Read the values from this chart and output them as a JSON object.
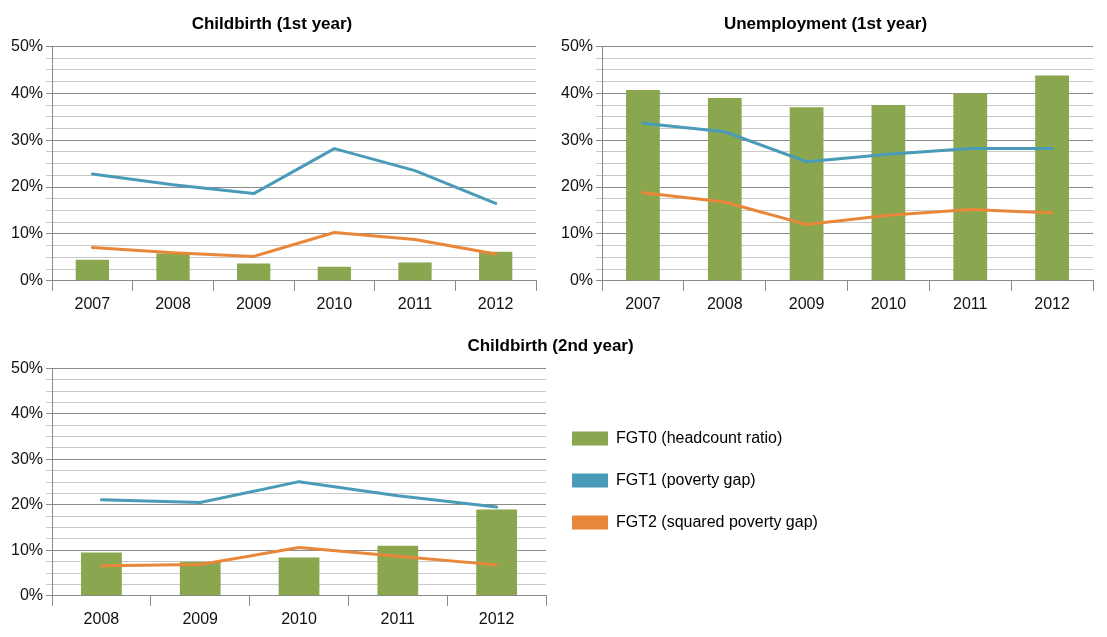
{
  "chart_data": [
    {
      "type": "bar",
      "title": "Childbirth (1st year)",
      "categories": [
        "2007",
        "2008",
        "2009",
        "2010",
        "2011",
        "2012"
      ],
      "marker": "none",
      "grid": "y",
      "series": [
        {
          "color": "#8aa64e",
          "values": [
            4.5,
            5.8,
            3.7,
            3.0,
            3.9,
            6.2
          ]
        },
        {
          "type": "line",
          "color": "#4a9bb8",
          "values": [
            22.8,
            20.5,
            18.6,
            28.2,
            23.5,
            16.5
          ]
        },
        {
          "type": "line",
          "color": "#e8873a",
          "values": [
            7.1,
            6.0,
            5.2,
            10.3,
            8.8,
            5.7
          ]
        }
      ],
      "ylim": [
        0,
        50
      ],
      "yticks": [
        {
          "value": 0,
          "label": "0%"
        },
        {
          "value": 2.5,
          "label": null
        },
        {
          "value": 5,
          "label": null
        },
        {
          "value": 7.5,
          "label": null
        },
        {
          "value": 10,
          "label": "10%"
        },
        {
          "value": 12.5,
          "label": null
        },
        {
          "value": 15,
          "label": null
        },
        {
          "value": 17.5,
          "label": null
        },
        {
          "value": 20,
          "label": "20%"
        },
        {
          "value": 22.5,
          "label": null
        },
        {
          "value": 25,
          "label": null
        },
        {
          "value": 27.5,
          "label": null
        },
        {
          "value": 30,
          "label": "30%"
        },
        {
          "value": 32.5,
          "label": null
        },
        {
          "value": 35,
          "label": null
        },
        {
          "value": 37.5,
          "label": null
        },
        {
          "value": 40,
          "label": "40%"
        },
        {
          "value": 42.5,
          "label": null
        },
        {
          "value": 45,
          "label": null
        },
        {
          "value": 47.5,
          "label": null
        },
        {
          "value": 50,
          "label": "50%"
        }
      ]
    },
    {
      "type": "bar",
      "title": "Unemployment (1st year)",
      "categories": [
        "2007",
        "2008",
        "2009",
        "2010",
        "2011",
        "2012"
      ],
      "marker": "none",
      "grid": "y",
      "series": [
        {
          "color": "#8aa64e",
          "values": [
            40.7,
            39.0,
            37.0,
            37.5,
            40.0,
            43.8
          ]
        },
        {
          "type": "line",
          "color": "#4a9bb8",
          "values": [
            33.6,
            31.8,
            25.4,
            27.0,
            28.2,
            28.2
          ]
        },
        {
          "type": "line",
          "color": "#e8873a",
          "values": [
            18.8,
            16.8,
            12.0,
            14.0,
            15.2,
            14.5
          ]
        }
      ],
      "ylim": [
        0,
        50
      ],
      "yticks": [
        {
          "value": 0,
          "label": "0%"
        },
        {
          "value": 2.5,
          "label": null
        },
        {
          "value": 5,
          "label": null
        },
        {
          "value": 7.5,
          "label": null
        },
        {
          "value": 10,
          "label": "10%"
        },
        {
          "value": 12.5,
          "label": null
        },
        {
          "value": 15,
          "label": null
        },
        {
          "value": 17.5,
          "label": null
        },
        {
          "value": 20,
          "label": "20%"
        },
        {
          "value": 22.5,
          "label": null
        },
        {
          "value": 25,
          "label": null
        },
        {
          "value": 27.5,
          "label": null
        },
        {
          "value": 30,
          "label": "30%"
        },
        {
          "value": 32.5,
          "label": null
        },
        {
          "value": 35,
          "label": null
        },
        {
          "value": 37.5,
          "label": null
        },
        {
          "value": 40,
          "label": "40%"
        },
        {
          "value": 42.5,
          "label": null
        },
        {
          "value": 45,
          "label": null
        },
        {
          "value": 47.5,
          "label": null
        },
        {
          "value": 50,
          "label": "50%"
        }
      ]
    },
    {
      "type": "bar",
      "title": "Childbirth (2nd year)",
      "categories": [
        "2008",
        "2009",
        "2010",
        "2011",
        "2012"
      ],
      "marker": "none",
      "grid": "y",
      "legend": "right",
      "series": [
        {
          "name": "FGT0 (headcount ratio)",
          "color": "#8aa64e",
          "values": [
            9.5,
            7.5,
            8.4,
            11.0,
            19.0
          ]
        },
        {
          "name": "FGT1 (poverty gap)",
          "type": "line",
          "color": "#4a9bb8",
          "values": [
            21.1,
            20.5,
            25.1,
            22.0,
            19.5
          ]
        },
        {
          "name": "FGT2 (squared poverty gap)",
          "type": "line",
          "color": "#e8873a",
          "values": [
            6.6,
            6.9,
            10.6,
            8.7,
            6.8
          ]
        }
      ],
      "ylim": [
        0,
        50
      ],
      "yticks": [
        {
          "value": 0,
          "label": "0%"
        },
        {
          "value": 2.5,
          "label": null
        },
        {
          "value": 5,
          "label": null
        },
        {
          "value": 7.5,
          "label": null
        },
        {
          "value": 10,
          "label": "10%"
        },
        {
          "value": 12.5,
          "label": null
        },
        {
          "value": 15,
          "label": null
        },
        {
          "value": 17.5,
          "label": null
        },
        {
          "value": 20,
          "label": "20%"
        },
        {
          "value": 22.5,
          "label": null
        },
        {
          "value": 25,
          "label": null
        },
        {
          "value": 27.5,
          "label": null
        },
        {
          "value": 30,
          "label": "30%"
        },
        {
          "value": 32.5,
          "label": null
        },
        {
          "value": 35,
          "label": null
        },
        {
          "value": 37.5,
          "label": null
        },
        {
          "value": 40,
          "label": "40%"
        },
        {
          "value": 42.5,
          "label": null
        },
        {
          "value": 45,
          "label": null
        },
        {
          "value": 47.5,
          "label": null
        },
        {
          "value": 50,
          "label": "50%"
        }
      ]
    }
  ]
}
